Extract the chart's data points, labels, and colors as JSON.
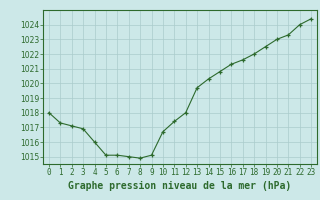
{
  "x": [
    0,
    1,
    2,
    3,
    4,
    5,
    6,
    7,
    8,
    9,
    10,
    11,
    12,
    13,
    14,
    15,
    16,
    17,
    18,
    19,
    20,
    21,
    22,
    23
  ],
  "y": [
    1018.0,
    1017.3,
    1017.1,
    1016.9,
    1016.0,
    1015.1,
    1015.1,
    1015.0,
    1014.9,
    1015.1,
    1016.7,
    1017.4,
    1018.0,
    1019.7,
    1020.3,
    1020.8,
    1021.3,
    1021.6,
    1022.0,
    1022.5,
    1023.0,
    1023.3,
    1024.0,
    1024.4
  ],
  "line_color": "#2d6a2d",
  "marker_color": "#2d6a2d",
  "bg_color": "#cce8e8",
  "grid_color": "#aacccc",
  "title": "Graphe pression niveau de la mer (hPa)",
  "ylim_min": 1014.5,
  "ylim_max": 1025.0,
  "yticks": [
    1015,
    1016,
    1017,
    1018,
    1019,
    1020,
    1021,
    1022,
    1023,
    1024
  ],
  "xticks": [
    0,
    1,
    2,
    3,
    4,
    5,
    6,
    7,
    8,
    9,
    10,
    11,
    12,
    13,
    14,
    15,
    16,
    17,
    18,
    19,
    20,
    21,
    22,
    23
  ],
  "title_fontsize": 7.0,
  "tick_fontsize": 5.5
}
